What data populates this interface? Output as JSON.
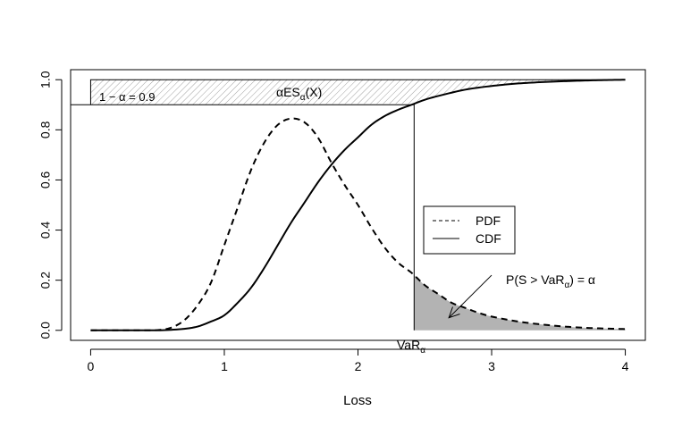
{
  "chart_data": {
    "type": "line",
    "title": "",
    "xlabel": "Loss",
    "ylabel": "",
    "xlim": [
      -0.15,
      4.15
    ],
    "ylim": [
      -0.04,
      1.04
    ],
    "x_ticks": [
      0,
      1,
      2,
      3,
      4
    ],
    "x_tick_labels": [
      "0",
      "1",
      "2",
      "3",
      "4"
    ],
    "y_ticks": [
      0.0,
      0.2,
      0.4,
      0.6,
      0.8,
      1.0
    ],
    "y_tick_labels": [
      "0.0",
      "0.2",
      "0.4",
      "0.6",
      "0.8",
      "1.0"
    ],
    "grid": false,
    "legend": {
      "position": "center-right",
      "entries": [
        "PDF",
        "CDF"
      ]
    },
    "series": [
      {
        "name": "PDF",
        "line_style": "dashed",
        "x": [
          0.0,
          0.4,
          0.5,
          0.6,
          0.7,
          0.8,
          0.9,
          1.0,
          1.1,
          1.2,
          1.3,
          1.4,
          1.5,
          1.6,
          1.7,
          1.8,
          1.9,
          2.0,
          2.1,
          2.2,
          2.3,
          2.4,
          2.5,
          2.6,
          2.7,
          2.8,
          2.9,
          3.0,
          3.2,
          3.4,
          3.6,
          3.8,
          4.0
        ],
        "y": [
          0.0,
          0.0,
          0.001,
          0.01,
          0.04,
          0.1,
          0.19,
          0.34,
          0.49,
          0.64,
          0.75,
          0.82,
          0.845,
          0.83,
          0.77,
          0.67,
          0.58,
          0.5,
          0.41,
          0.33,
          0.27,
          0.23,
          0.18,
          0.145,
          0.11,
          0.09,
          0.07,
          0.055,
          0.035,
          0.022,
          0.013,
          0.008,
          0.005
        ]
      },
      {
        "name": "CDF",
        "line_style": "solid",
        "x": [
          0.0,
          0.5,
          0.6,
          0.7,
          0.8,
          0.9,
          1.0,
          1.1,
          1.2,
          1.3,
          1.4,
          1.5,
          1.6,
          1.7,
          1.8,
          1.9,
          2.0,
          2.1,
          2.2,
          2.3,
          2.4,
          2.5,
          2.6,
          2.8,
          3.0,
          3.2,
          3.4,
          3.6,
          3.8,
          4.0
        ],
        "y": [
          0.0,
          0.0,
          0.002,
          0.006,
          0.015,
          0.035,
          0.06,
          0.11,
          0.17,
          0.25,
          0.34,
          0.43,
          0.51,
          0.59,
          0.66,
          0.72,
          0.77,
          0.82,
          0.855,
          0.88,
          0.9,
          0.92,
          0.935,
          0.96,
          0.975,
          0.985,
          0.991,
          0.995,
          0.998,
          1.0
        ]
      }
    ],
    "var_x": 2.42,
    "one_minus_alpha": 0.9,
    "annotations": {
      "one_minus_alpha_label": "1 − α = 0.9",
      "es_label": "αES",
      "es_subscript": "α",
      "es_arg": "(X)",
      "var_label": "VaR",
      "var_subscript": "α",
      "tail_prob_prefix": "P(S > VaR",
      "tail_prob_subscript": "α",
      "tail_prob_suffix": ") = α",
      "tail_arrow_from": [
        3.0,
        0.22
      ],
      "tail_arrow_to": [
        2.68,
        0.05
      ]
    },
    "colors": {
      "tail_fill": "#b3b3b3",
      "hatch": "#a0a0a0",
      "line": "#000000"
    }
  }
}
